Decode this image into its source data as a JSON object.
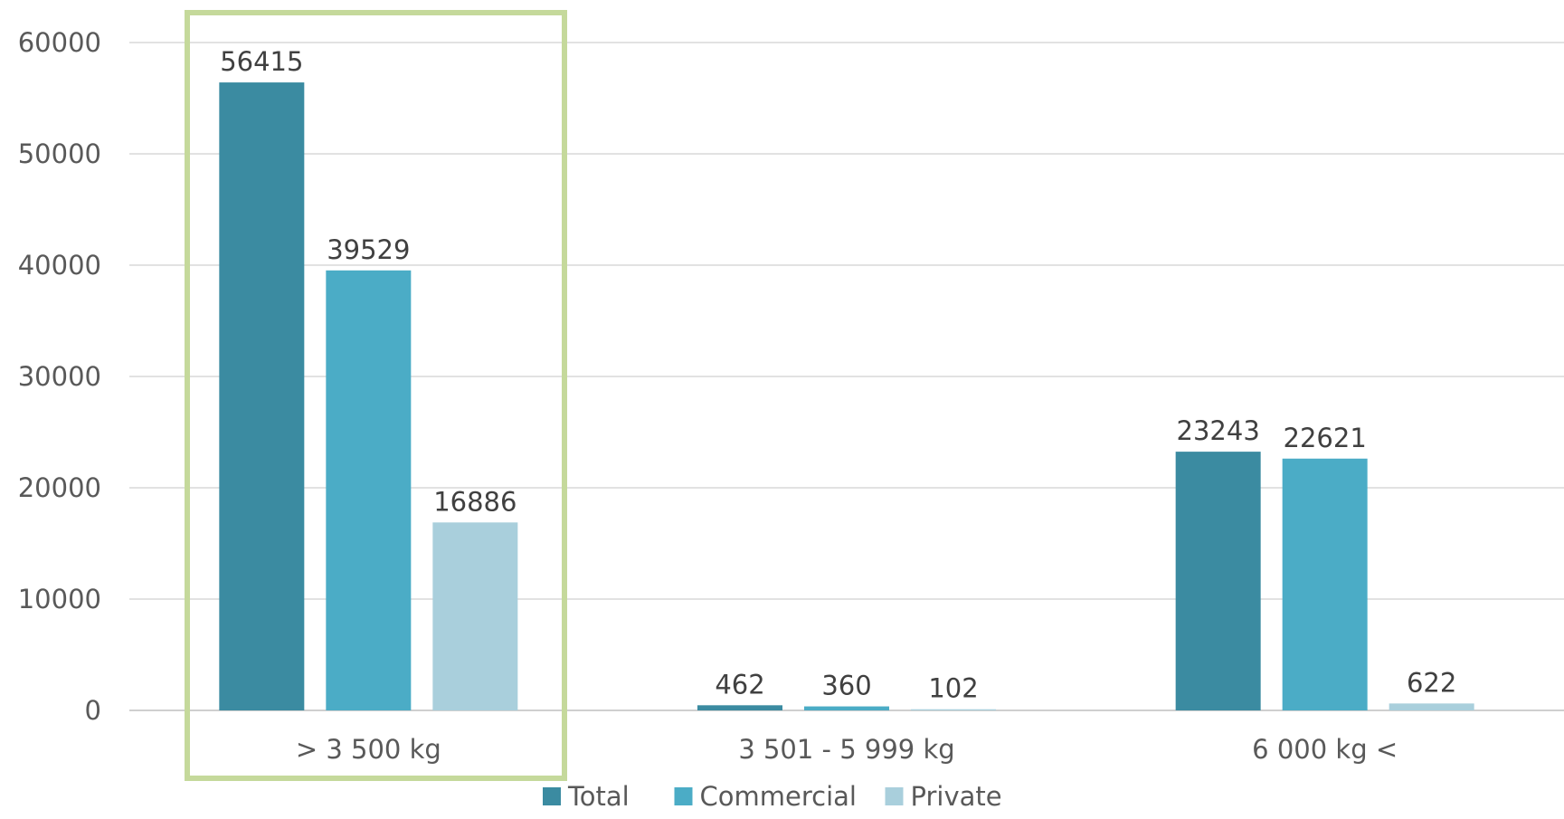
{
  "chart_data": {
    "type": "bar",
    "categories": [
      "> 3 500 kg",
      "3 501 - 5 999 kg",
      "6 000 kg <"
    ],
    "series": [
      {
        "name": "Total",
        "values": [
          56415,
          462,
          23243
        ],
        "color": "#3b8ba1"
      },
      {
        "name": "Commercial",
        "values": [
          39529,
          360,
          22621
        ],
        "color": "#4bacc6"
      },
      {
        "name": "Private",
        "values": [
          16886,
          102,
          622
        ],
        "color": "#a9cfdc"
      }
    ],
    "data_labels": [
      [
        "56415",
        "462",
        "23243"
      ],
      [
        "39529",
        "360",
        "22621"
      ],
      [
        "16886",
        "102",
        "622"
      ]
    ],
    "y_ticks": [
      "0",
      "10000",
      "20000",
      "30000",
      "40000",
      "50000",
      "60000"
    ],
    "ylim": [
      0,
      60000
    ],
    "grid": true,
    "legend_position": "bottom",
    "highlight": {
      "category_index": 0,
      "color": "#c5d99b"
    }
  }
}
